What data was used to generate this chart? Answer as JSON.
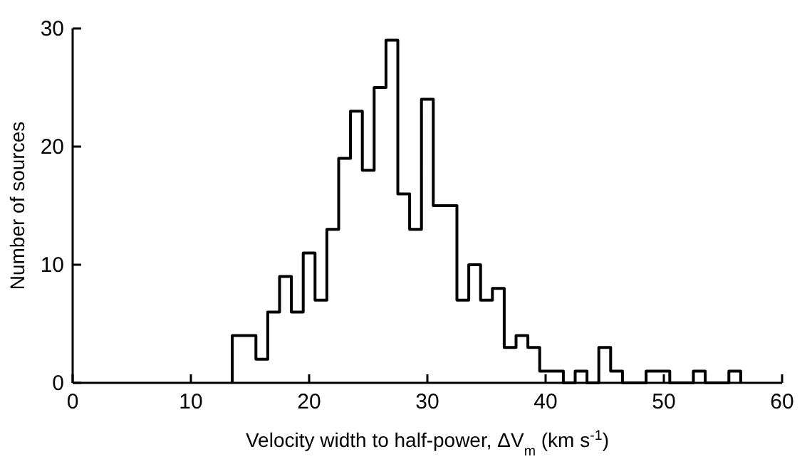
{
  "chart_data": {
    "type": "histogram",
    "xlabel": "Velocity width to half-power, ΔV$_{m}$ (km s$^{-1}$)",
    "ylabel": "Number of sources",
    "bins": [
      13.5,
      14.5,
      15.5,
      16.5,
      17.5,
      18.5,
      19.5,
      20.5,
      21.5,
      22.5,
      23.5,
      24.5,
      25.5,
      26.5,
      27.5,
      28.5,
      29.5,
      30.5,
      31.5,
      32.5,
      33.5,
      34.5,
      35.5,
      36.5,
      37.5,
      38.5,
      39.5,
      40.5,
      41.5,
      42.5,
      43.5,
      44.5,
      45.5,
      46.5,
      47.5,
      48.5,
      49.5,
      50.5,
      51.5,
      52.5,
      53.5,
      54.5,
      55.5,
      56.5
    ],
    "values": [
      4,
      4,
      2,
      6,
      9,
      6,
      11,
      7,
      13,
      19,
      23,
      18,
      25,
      29,
      16,
      13,
      24,
      15,
      15,
      7,
      10,
      7,
      8,
      3,
      4,
      3,
      1,
      1,
      0,
      1,
      0,
      3,
      1,
      0,
      0,
      1,
      1,
      0,
      0,
      1,
      0,
      0,
      1
    ],
    "color": "#000000",
    "xlim": [
      0,
      60
    ],
    "xticks": [
      0,
      10,
      20,
      30,
      40,
      50,
      60
    ],
    "ylim": [
      0,
      30
    ],
    "yticks": [
      0,
      10,
      20,
      30
    ],
    "grid": false
  }
}
